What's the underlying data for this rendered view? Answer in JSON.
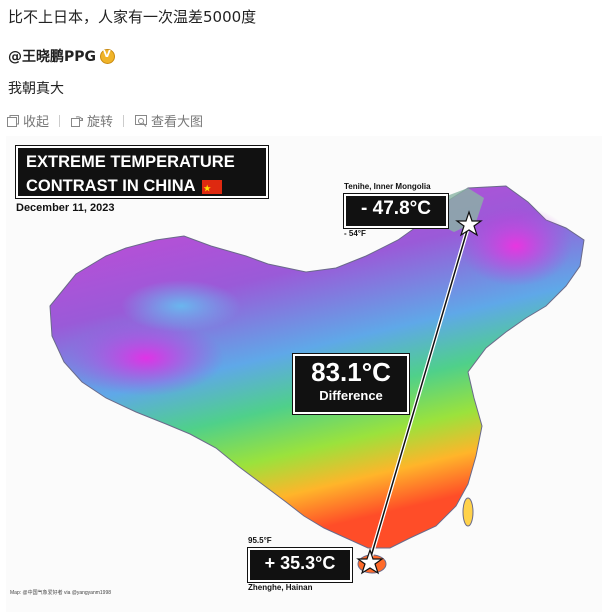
{
  "post": {
    "text": "比不上日本，人家有一次温差5000度",
    "author": "@王晓鹏PPG",
    "comment": "我朝真大"
  },
  "actions": [
    {
      "icon": "collapse-icon",
      "label": "收起"
    },
    {
      "icon": "rotate-icon",
      "label": "旋转"
    },
    {
      "icon": "view-large-icon",
      "label": "查看大图"
    }
  ],
  "figure": {
    "title_line1": "EXTREME TEMPERATURE",
    "title_line2": "CONTRAST IN CHINA",
    "date": "December 11, 2023",
    "cold": {
      "place": "Tenihe, Inner Mongolia",
      "celsius": "- 47.8°C",
      "fahrenheit": "- 54°F"
    },
    "hot": {
      "place": "Zhenghe, Hainan",
      "celsius": "+ 35.3°C",
      "fahrenheit": "95.5°F"
    },
    "difference": {
      "value": "83.1°C",
      "label": "Difference"
    },
    "credit": "Map: @中国气象爱好者 via @yangyanm1998"
  },
  "colors": {
    "cold": "#d63ad8",
    "warm": "#3fc63f",
    "hot": "#ff5a2a"
  }
}
